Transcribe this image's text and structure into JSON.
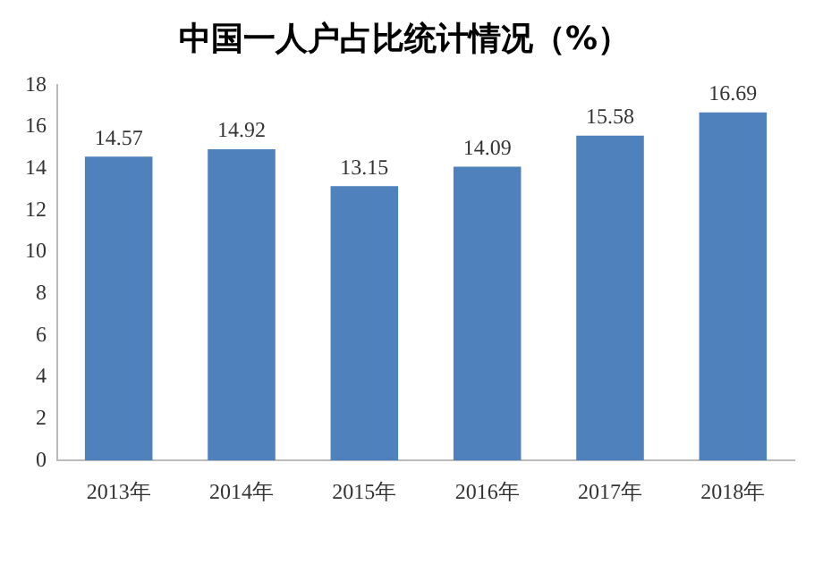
{
  "chart_data": {
    "type": "bar",
    "title": "中国一人户占比统计情况（%）",
    "categories": [
      "2013年",
      "2014年",
      "2015年",
      "2016年",
      "2017年",
      "2018年"
    ],
    "values": [
      14.57,
      14.92,
      13.15,
      14.09,
      15.58,
      16.69
    ],
    "color": "#4f81bd",
    "ylim": [
      0,
      18
    ],
    "yticks": [
      0,
      2,
      4,
      6,
      8,
      10,
      12,
      14,
      16,
      18
    ],
    "grid": false,
    "data_labels": true
  }
}
